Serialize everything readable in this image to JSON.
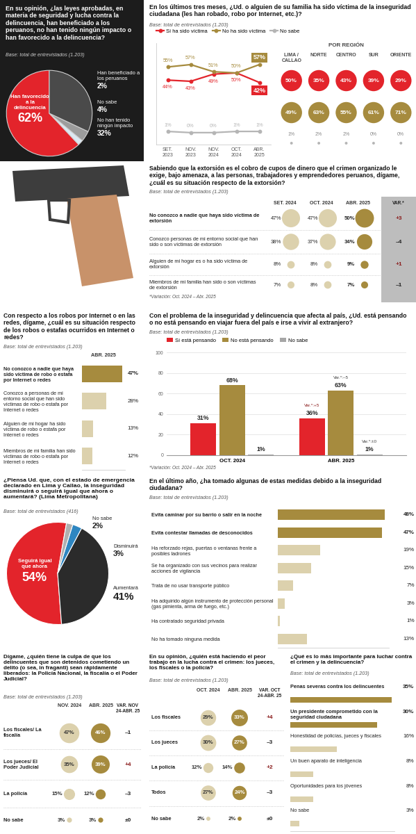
{
  "chart_data": [
    {
      "type": "pie",
      "title": "En su opinión, ¿las leyes aprobadas, en materia de seguridad y lucha contra la delincuencia, han beneficiado a los peruanos, no han tenido ningún impacto o han favorecido a la delincuencia?",
      "subtitle": "Base: total de entrevistados (1.203)",
      "categories": [
        "Han favorecido a la delincuencia",
        "Han beneficiado a los peruanos",
        "No sabe",
        "No han tenido ningún impacto"
      ],
      "values": [
        62,
        2,
        4,
        32
      ],
      "value_labels": [
        "62%",
        "2%",
        "4%",
        "32%"
      ],
      "colors": [
        "#e3242b",
        "#dbe8f2",
        "#9c9c9c",
        "#4a4a4a"
      ],
      "data_labels": true
    },
    {
      "type": "line",
      "title": "En los últimos tres meses, ¿Ud. o alguien de su familia ha sido víctima de la inseguridad ciudadana (les han robado, robo por Internet, etc.)?",
      "subtitle": "Base: total de entrevistados (1.203)",
      "categories": [
        "SET. 2023",
        "NOV. 2023",
        "NOV. 2024",
        "OCT. 2024",
        "ABR. 2025"
      ],
      "series": [
        {
          "name": "Sí ha sido víctima",
          "color": "#e3242b",
          "values": [
            44,
            43,
            49,
            50,
            42
          ],
          "value_labels": [
            "44%",
            "43%",
            "49%",
            "50%",
            "42%"
          ]
        },
        {
          "name": "No ha sido víctima",
          "color": "#a68b3e",
          "values": [
            55,
            57,
            51,
            50,
            57
          ],
          "value_labels": [
            "55%",
            "57%",
            "51%",
            "50%",
            "57%"
          ]
        },
        {
          "name": "No sabe",
          "color": "#b5b5b5",
          "values": [
            1,
            0,
            0,
            1,
            1
          ],
          "value_labels": [
            "1%",
            "0%",
            "0%",
            "1%",
            "1%"
          ]
        }
      ],
      "ylim": [
        -10,
        75
      ],
      "yticks": [],
      "tick_labels": "x",
      "legend": "upper left",
      "marker": "circle",
      "data_labels": true
    },
    {
      "type": "bubbles",
      "title": "POR REGIÓN",
      "categories": [
        "LIMA / CALLAO",
        "NORTE",
        "CENTRO",
        "SUR",
        "ORIENTE"
      ],
      "series": [
        {
          "name": "Sí ha sido víctima",
          "color": "#e3242b",
          "values": [
            50,
            35,
            43,
            39,
            29
          ],
          "value_labels": [
            "50%",
            "35%",
            "43%",
            "39%",
            "29%"
          ]
        },
        {
          "name": "No ha sido víctima",
          "color": "#a68b3e",
          "values": [
            49,
            63,
            55,
            61,
            71
          ],
          "value_labels": [
            "49%",
            "63%",
            "55%",
            "61%",
            "71%"
          ]
        },
        {
          "name": "No sabe",
          "color": "#b5b5b5",
          "values": [
            1,
            2,
            2,
            0,
            0
          ],
          "value_labels": [
            "1%",
            "2%",
            "2%",
            "0%",
            "0%"
          ]
        }
      ],
      "data_labels": true
    },
    {
      "type": "bubbles",
      "title": "Sabiendo que la extorsión es el cobro de cupos de dinero que el crimen organizado le exige, bajo amenaza, a las personas, trabajadores y emprendedores peruanos, dígame, ¿cuál es su situación respecto de la extorsión?",
      "subtitle": "Base: total de entrevistados (1.203)",
      "var_title": "VAR.*",
      "categories": [
        "No conozco a nadie que haya sido víctima de extorsión",
        "Conozco personas de mi entorno social que han sido o son víctimas de extorsión",
        "Alguien de mi hogar es o ha sido víctima de extorsión",
        "Miembros de mi familia han sido o son víctimas de extorsión"
      ],
      "series": [
        {
          "name": "SET. 2024",
          "color": "#dcd1ad",
          "values": [
            47,
            38,
            8,
            7
          ],
          "value_labels": [
            "47%",
            "38%",
            "8%",
            "7%"
          ]
        },
        {
          "name": "OCT. 2024",
          "color": "#dcd1ad",
          "values": [
            47,
            37,
            8,
            8
          ],
          "value_labels": [
            "47%",
            "37%",
            "8%",
            "8%"
          ]
        },
        {
          "name": "ABR. 2025",
          "color": "#a68b3e",
          "values": [
            50,
            34,
            9,
            7
          ],
          "value_labels": [
            "50%",
            "34%",
            "9%",
            "7%"
          ]
        }
      ],
      "var": [
        3,
        -4,
        1,
        -1
      ],
      "var_labels": [
        "+3",
        "–4",
        "+1",
        "–1"
      ],
      "footnote": "*Variación: Oct. 2024 – Abr. 2025",
      "data_labels": true
    },
    {
      "type": "bar",
      "orientation": "horizontal",
      "title": "Con respecto a los robos por Internet o en las redes, dígame, ¿cuál es su situación respecto de los robos o estafas ocurridos en Internet o redes?",
      "subtitle": "Base: total de entrevistados (1.203)",
      "categories": [
        "No conozco a nadie que haya sido víctima de robo o estafa por Internet o redes",
        "Conozco a personas de mi entorno social que han sido víctimas de robo o estafa por Internet o redes",
        "Alguien de mi hogar ha sido víctima de robo o estafa por Internet o redes",
        "Miembros de mi familia han sido víctimas de robo o estafa por Internet o redes"
      ],
      "series": [
        {
          "name": "ABR. 2025",
          "colors": [
            "#a68b3e",
            "#dcd1ad",
            "#dcd1ad",
            "#dcd1ad"
          ],
          "values": [
            47,
            28,
            13,
            12
          ],
          "value_labels": [
            "47%",
            "28%",
            "13%",
            "12%"
          ]
        }
      ],
      "xlim": [
        0,
        50
      ],
      "xticks": [],
      "tick_labels": "y",
      "data_labels": true
    },
    {
      "type": "bar",
      "title": "Con el problema de la inseguridad y delincuencia que afecta al país, ¿Ud. está pensando o no está pensando en viajar fuera del país e irse a vivir al extranjero?",
      "subtitle": "Base: total de entrevistados (1.203)",
      "categories": [
        "OCT. 2024",
        "ABR. 2025"
      ],
      "series": [
        {
          "name": "Sí está pensando",
          "color": "#e3242b",
          "values": [
            31,
            36
          ],
          "value_labels": [
            "31%",
            "36%"
          ],
          "var": [
            null,
            5
          ],
          "var_labels": [
            null,
            "Var.*:+5"
          ]
        },
        {
          "name": "No está pensando",
          "color": "#a68b3e",
          "values": [
            68,
            63
          ],
          "value_labels": [
            "68%",
            "63%"
          ],
          "var": [
            null,
            -5
          ],
          "var_labels": [
            null,
            "Var.*:–5"
          ]
        },
        {
          "name": "No sabe",
          "color": "#a6a6a6",
          "values": [
            1,
            1
          ],
          "value_labels": [
            "1%",
            "1%"
          ],
          "var": [
            null,
            0
          ],
          "var_labels": [
            null,
            "Var.*:±0"
          ]
        }
      ],
      "ylim": [
        0,
        100
      ],
      "yticks": [
        0,
        20,
        40,
        60,
        80,
        100
      ],
      "grid": true,
      "legend": "upper left",
      "data_labels": true,
      "footnote": "*Variación: Oct. 2024 – Abr. 2025"
    },
    {
      "type": "pie",
      "title": "¿Piensa Ud. que, con el estado de emergencia declarado en Lima y Callao, la inseguridad disminuirá o seguirá igual que ahora o aumentará? (Lima Metropolitana)",
      "subtitle": "Base: total de entrevistados (416)",
      "categories": [
        "Seguirá igual que ahora",
        "Aumentará",
        "Disminuirá",
        "No sabe"
      ],
      "values": [
        54,
        41,
        3,
        2
      ],
      "value_labels": [
        "54%",
        "41%",
        "3%",
        "2%"
      ],
      "colors": [
        "#e3242b",
        "#2b2b2b",
        "#2e86c1",
        "#b0b0b0"
      ],
      "data_labels": true
    },
    {
      "type": "bar",
      "orientation": "horizontal",
      "title": "En el último año, ¿ha tomado algunas de estas medidas debido a la inseguridad ciudadana?",
      "subtitle": "Base: total de entrevistados (1.203)",
      "categories": [
        "Evita caminar por su barrio o salir en la noche",
        "Evita contestar llamadas de desconocidos",
        "Ha reforzado rejas, puertas o ventanas frente a posibles ladrones",
        "Se ha organizado con sus vecinos para realizar acciones de vigilancia",
        "Trata de no usar transporte público",
        "Ha adquirido algún instrumento de protección personal (gas pimienta, arma de fuego, etc.)",
        "Ha contratado seguridad privada",
        "No ha tomado ninguna medida"
      ],
      "values": [
        48,
        47,
        19,
        15,
        7,
        3,
        1,
        13
      ],
      "value_labels": [
        "48%",
        "47%",
        "19%",
        "15%",
        "7%",
        "3%",
        "1%",
        "13%"
      ],
      "colors": [
        "#a68b3e",
        "#a68b3e",
        "#dcd1ad",
        "#dcd1ad",
        "#dcd1ad",
        "#dcd1ad",
        "#dcd1ad",
        "#dcd1ad"
      ],
      "xlim": [
        0,
        50
      ],
      "xticks": [],
      "tick_labels": "y",
      "data_labels": true
    },
    {
      "type": "bubbles",
      "title": "Dígame, ¿quién tiene la culpa de que los delincuentes que son detenidos cometiendo un delito (o sea, in fraganti) sean rápidamente liberados: la Policía Nacional, la fiscalía o el Poder Judicial?",
      "subtitle": "Base: total de entrevistados (1.203)",
      "var_title": "VAR. NOV 24-ABR. 25",
      "categories": [
        "Los fiscales/ La fiscalía",
        "Los jueces/ El Poder Judicial",
        "La policía",
        "No sabe"
      ],
      "series": [
        {
          "name": "NOV. 2024",
          "color": "#dcd1ad",
          "values": [
            47,
            35,
            15,
            3
          ],
          "value_labels": [
            "47%",
            "35%",
            "15%",
            "3%"
          ]
        },
        {
          "name": "ABR. 2025",
          "color": "#a68b3e",
          "values": [
            46,
            39,
            12,
            3
          ],
          "value_labels": [
            "46%",
            "39%",
            "12%",
            "3%"
          ]
        }
      ],
      "var": [
        -1,
        4,
        -3,
        0
      ],
      "var_labels": [
        "–1",
        "+4",
        "–3",
        "±0"
      ],
      "data_labels": true
    },
    {
      "type": "bubbles",
      "title": "En su opinión, ¿quién está haciendo el peor trabajo en la lucha contra el crimen: los jueces, los fiscales o la policía?",
      "subtitle": "Base: total de entrevistados (1.203)",
      "var_title": "VAR. OCT 24-ABR. 25",
      "categories": [
        "Los fiscales",
        "Los jueces",
        "La policía",
        "Todos",
        "No sabe"
      ],
      "series": [
        {
          "name": "OCT. 2024",
          "color": "#dcd1ad",
          "values": [
            29,
            30,
            12,
            27,
            2
          ],
          "value_labels": [
            "29%",
            "30%",
            "12%",
            "27%",
            "2%"
          ]
        },
        {
          "name": "ABR. 2025",
          "color": "#a68b3e",
          "values": [
            33,
            27,
            14,
            24,
            2
          ],
          "value_labels": [
            "33%",
            "27%",
            "14%",
            "24%",
            "2%"
          ]
        }
      ],
      "var": [
        4,
        -3,
        2,
        -3,
        0
      ],
      "var_labels": [
        "+4",
        "–3",
        "+2",
        "–3",
        "±0"
      ],
      "data_labels": true
    },
    {
      "type": "bar",
      "orientation": "horizontal",
      "title": "¿Qué es lo más importante para luchar contra el crimen y la delincuencia?",
      "subtitle": "Base: total de entrevistados (1.203)",
      "categories": [
        "Penas severas contra los delincuentes",
        "Un presidente comprometido con la seguridad ciudadana",
        "Honestidad de policías, jueces y fiscales",
        "Un buen aparato de inteligencia",
        "Oportunidades para los jóvenes",
        "No sabe"
      ],
      "values": [
        35,
        30,
        16,
        8,
        8,
        3
      ],
      "value_labels": [
        "35%",
        "30%",
        "16%",
        "8%",
        "8%",
        "3%"
      ],
      "colors": [
        "#a68b3e",
        "#a68b3e",
        "#dcd1ad",
        "#dcd1ad",
        "#dcd1ad",
        "#dcd1ad"
      ],
      "xlim": [
        0,
        36
      ],
      "xticks": [],
      "tick_labels": false,
      "data_labels": true
    }
  ]
}
